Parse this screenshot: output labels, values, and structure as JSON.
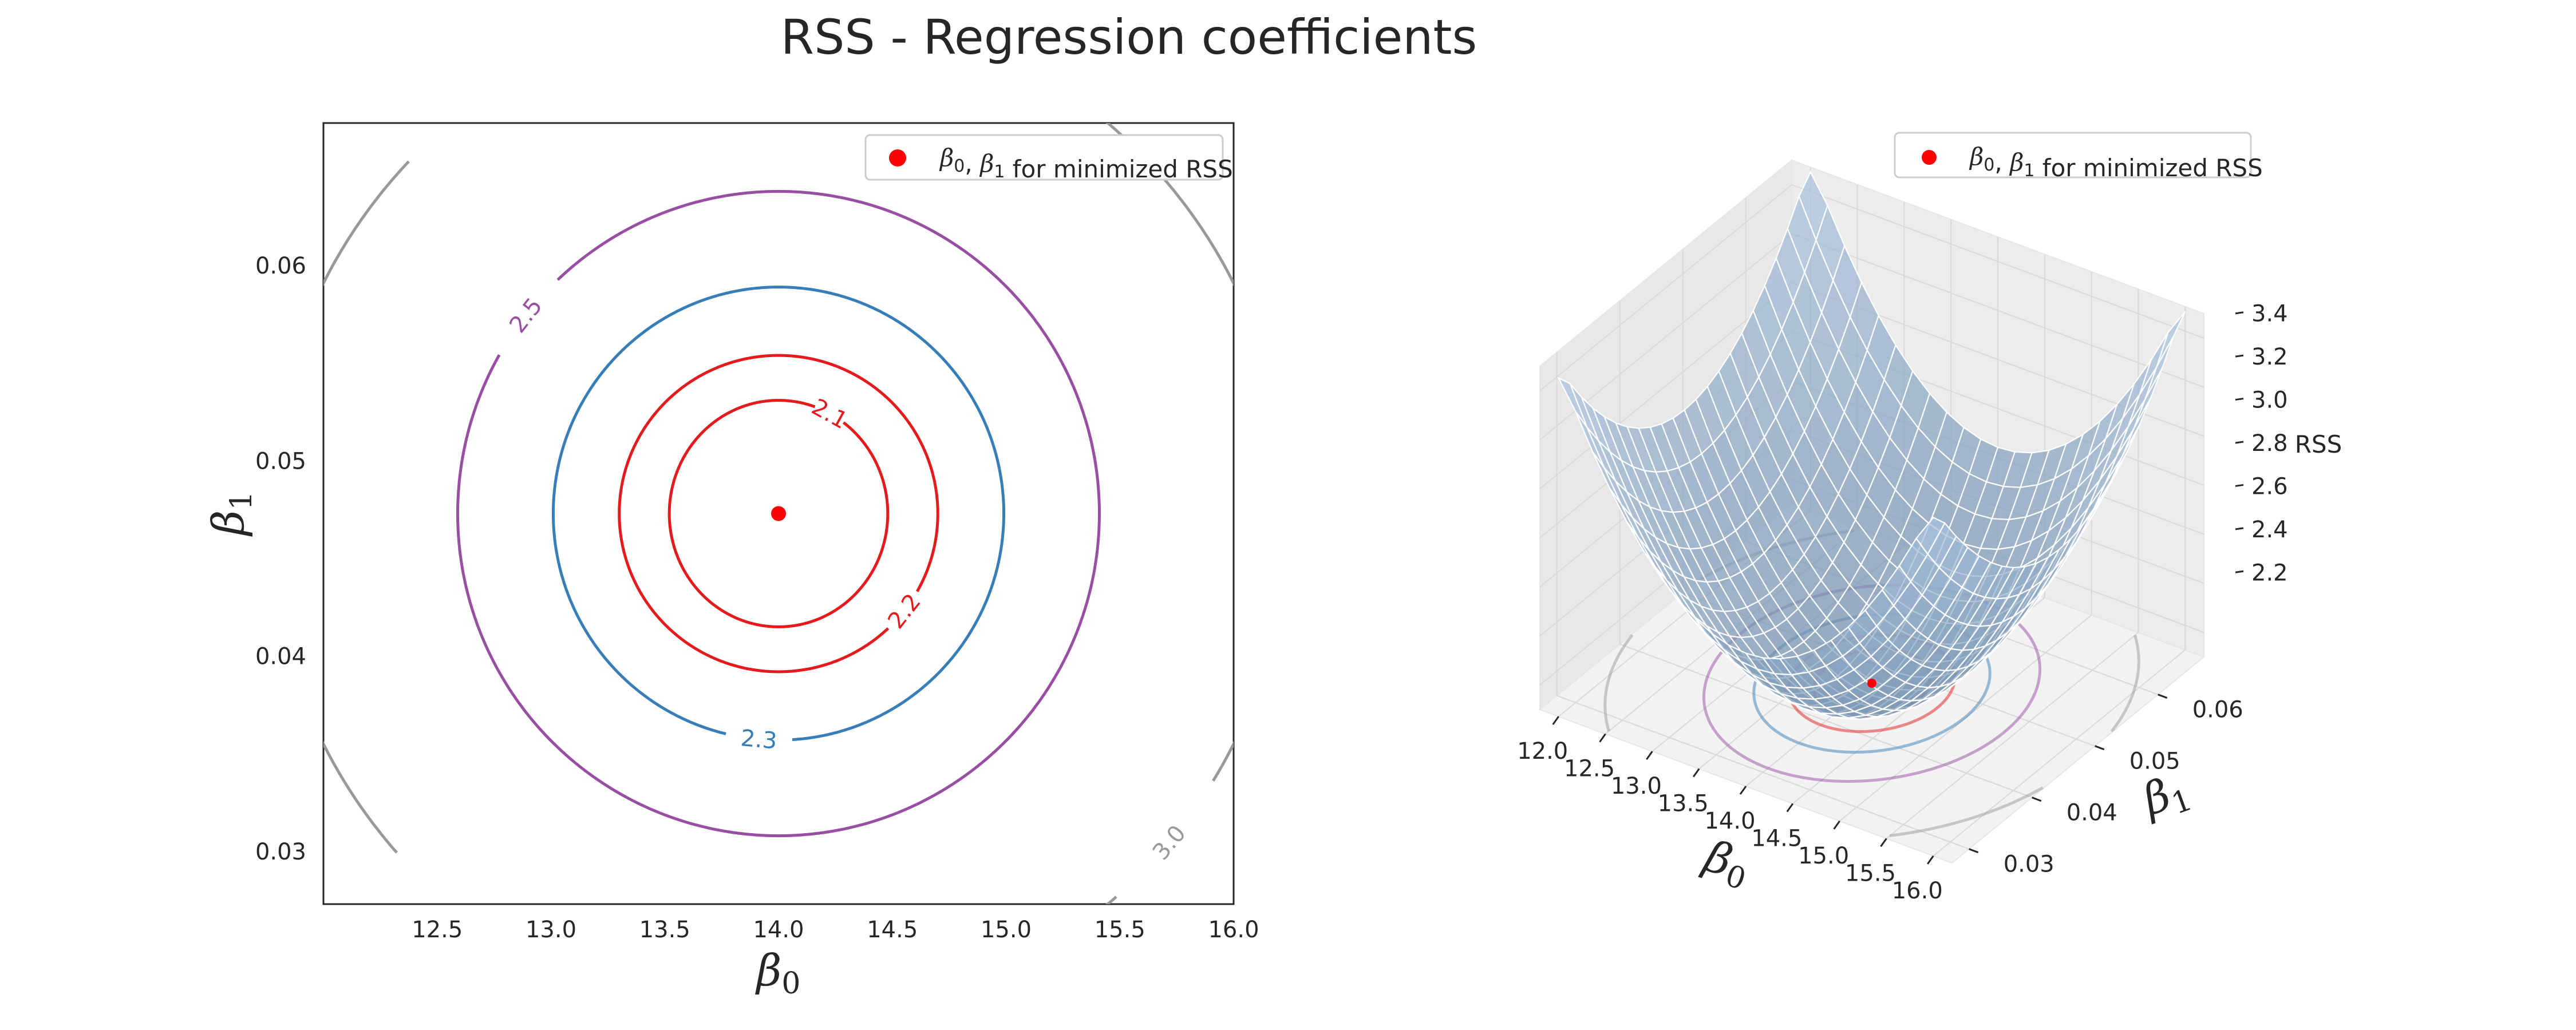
{
  "figure": {
    "title": "RSS - Regression coefficients"
  },
  "chart_data": [
    {
      "type": "contour",
      "xlabel": "β0",
      "ylabel": "β1",
      "xlim": [
        12.0,
        16.0
      ],
      "ylim": [
        0.0273,
        0.0673
      ],
      "x_ticks": [
        "12.5",
        "13.0",
        "13.5",
        "14.0",
        "14.5",
        "15.0",
        "15.5",
        "16.0"
      ],
      "y_ticks": [
        "0.03",
        "0.04",
        "0.05",
        "0.06"
      ],
      "minimum": {
        "x": 14.0,
        "y": 0.0473
      },
      "levels": [
        {
          "value": 2.1,
          "label": "2.1",
          "color": "#e41a1c",
          "rx": 0.48,
          "ry": 0.0058
        },
        {
          "value": 2.2,
          "label": "2.2",
          "color": "#e41a1c",
          "rx": 0.7,
          "ry": 0.0081
        },
        {
          "value": 2.3,
          "label": "2.3",
          "color": "#377eb8",
          "rx": 0.99,
          "ry": 0.0116
        },
        {
          "value": 2.5,
          "label": "2.5",
          "color": "#984ea3",
          "rx": 1.41,
          "ry": 0.0165
        },
        {
          "value": 3.0,
          "label": "3.0",
          "color": "#999999",
          "rx": 2.24,
          "ry": 0.0262
        }
      ],
      "legend": {
        "text": "β0, β1 for minimized RSS",
        "position": "upper right",
        "marker_color": "#ff0000"
      }
    },
    {
      "type": "surface",
      "xlabel": "β0",
      "ylabel": "β1",
      "zlabel": "RSS",
      "x_ticks": [
        "12.0",
        "12.5",
        "13.0",
        "13.5",
        "14.0",
        "14.5",
        "15.0",
        "15.5",
        "16.0"
      ],
      "y_ticks": [
        "0.03",
        "0.04",
        "0.05",
        "0.06"
      ],
      "z_ticks": [
        "2.2",
        "2.4",
        "2.6",
        "2.8",
        "3.0",
        "3.2",
        "3.4"
      ],
      "xlim": [
        11.8,
        16.2
      ],
      "ylim": [
        0.0273,
        0.0673
      ],
      "zlim": [
        2.1,
        3.5
      ],
      "surface_color": "#9ec3de",
      "minimum": {
        "x": 14.0,
        "y": 0.0473,
        "z": 2.05
      },
      "legend": {
        "text": "β0, β1 for minimized RSS",
        "position": "upper right",
        "marker_color": "#ff0000"
      }
    }
  ]
}
